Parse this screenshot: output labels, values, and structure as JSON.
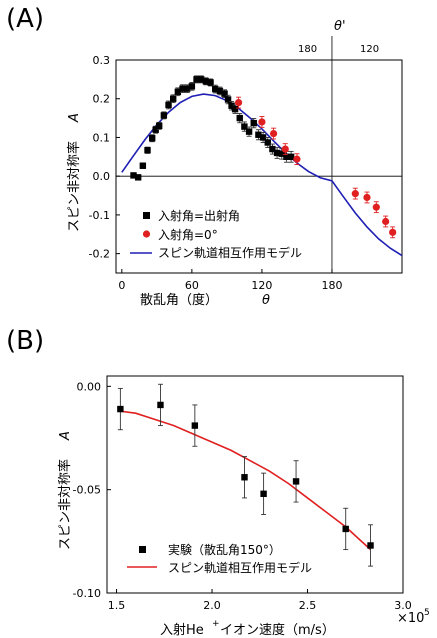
{
  "panels": {
    "a_label": "(A)",
    "b_label": "(B)"
  },
  "chart_data": [
    {
      "type": "scatter",
      "panel": "A",
      "xlabel": "散乱角（度）",
      "xlabel_symbol": "θ",
      "ylabel": "スピン非対称率",
      "ylabel_symbol": "A",
      "top_axis_label": "θ'",
      "top_ticks": [
        "180",
        "120"
      ],
      "xlim": [
        -5,
        240
      ],
      "ylim": [
        -0.25,
        0.3
      ],
      "xticks": [
        0,
        60,
        120,
        180
      ],
      "yticks": [
        -0.2,
        -0.1,
        0.0,
        0.1,
        0.2,
        0.3
      ],
      "xtick_labels": [
        "0",
        "60",
        "120",
        "180"
      ],
      "ytick_labels": [
        "-0.2",
        "-0.1",
        "0.0",
        "0.1",
        "0.2",
        "0.3"
      ],
      "vline_x": 180,
      "legend_position": "bottom-left",
      "series": [
        {
          "name": "入射角=出射角",
          "color": "#000000",
          "marker": "square",
          "points": [
            [
              10,
              0.002,
              0.006
            ],
            [
              14,
              -0.003,
              0.006
            ],
            [
              18,
              0.027,
              0.007
            ],
            [
              22,
              0.067,
              0.008
            ],
            [
              26,
              0.098,
              0.009
            ],
            [
              29,
              0.12,
              0.009
            ],
            [
              32,
              0.13,
              0.009
            ],
            [
              36,
              0.157,
              0.009
            ],
            [
              40,
              0.184,
              0.01
            ],
            [
              44,
              0.2,
              0.01
            ],
            [
              48,
              0.218,
              0.01
            ],
            [
              52,
              0.226,
              0.01
            ],
            [
              56,
              0.226,
              0.01
            ],
            [
              60,
              0.232,
              0.01
            ],
            [
              64,
              0.25,
              0.009
            ],
            [
              68,
              0.25,
              0.009
            ],
            [
              72,
              0.245,
              0.009
            ],
            [
              76,
              0.242,
              0.009
            ],
            [
              80,
              0.225,
              0.01
            ],
            [
              84,
              0.22,
              0.01
            ],
            [
              88,
              0.213,
              0.01
            ],
            [
              91,
              0.198,
              0.011
            ],
            [
              94,
              0.182,
              0.011
            ],
            [
              97,
              0.173,
              0.011
            ],
            [
              101,
              0.15,
              0.012
            ],
            [
              105,
              0.128,
              0.012
            ],
            [
              109,
              0.115,
              0.012
            ],
            [
              113,
              0.137,
              0.012
            ],
            [
              117,
              0.107,
              0.013
            ],
            [
              121,
              0.1,
              0.013
            ],
            [
              125,
              0.087,
              0.013
            ],
            [
              129,
              0.07,
              0.013
            ],
            [
              133,
              0.06,
              0.014
            ],
            [
              137,
              0.058,
              0.014
            ],
            [
              141,
              0.05,
              0.014
            ],
            [
              145,
              0.05,
              0.014
            ]
          ]
        },
        {
          "name": "入射角=0°",
          "color": "#e02020",
          "marker": "circle",
          "points": [
            [
              100,
              0.19,
              0.014
            ],
            [
              120,
              0.14,
              0.014
            ],
            [
              130,
              0.11,
              0.014
            ],
            [
              140,
              0.07,
              0.014
            ],
            [
              150,
              0.044,
              0.014
            ],
            [
              200,
              -0.045,
              0.014
            ],
            [
              210,
              -0.055,
              0.014
            ],
            [
              218,
              -0.08,
              0.014
            ],
            [
              226,
              -0.117,
              0.014
            ],
            [
              232,
              -0.145,
              0.014
            ]
          ]
        },
        {
          "name": "スピン軌道相互作用モデル",
          "color": "#1f1fb4",
          "marker": "line",
          "curve_x": [
            0,
            10,
            20,
            30,
            40,
            50,
            60,
            70,
            80,
            90,
            100,
            110,
            120,
            130,
            140,
            150,
            160,
            170,
            180,
            190,
            200,
            210,
            220,
            230,
            240
          ],
          "curve_y": [
            0.01,
            0.053,
            0.095,
            0.133,
            0.165,
            0.19,
            0.206,
            0.212,
            0.208,
            0.195,
            0.175,
            0.15,
            0.122,
            0.091,
            0.061,
            0.034,
            0.012,
            -0.004,
            -0.012,
            -0.054,
            -0.095,
            -0.131,
            -0.162,
            -0.186,
            -0.205
          ]
        }
      ]
    },
    {
      "type": "scatter",
      "panel": "B",
      "xlabel": "入射He",
      "xlabel_sup": "+",
      "xlabel_tail": "イオン速度（m/s）",
      "x_multiplier": "×10",
      "x_multiplier_exp": "5",
      "ylabel": "スピン非対称率",
      "ylabel_symbol": "A",
      "xlim": [
        1.45,
        3.0
      ],
      "ylim": [
        -0.1,
        0.005
      ],
      "xticks": [
        1.5,
        2.0,
        2.5,
        3.0
      ],
      "yticks": [
        -0.1,
        -0.05,
        0.0
      ],
      "xtick_labels": [
        "1.5",
        "2.0",
        "2.5",
        "3.0"
      ],
      "ytick_labels": [
        "-0.10",
        "-0.05",
        "0.00"
      ],
      "legend_position": "bottom-left",
      "series": [
        {
          "name": "実験（散乱角150°）",
          "color": "#000000",
          "marker": "square",
          "points": [
            [
              1.52,
              -0.011,
              0.01
            ],
            [
              1.73,
              -0.009,
              0.01
            ],
            [
              1.91,
              -0.019,
              0.01
            ],
            [
              2.17,
              -0.044,
              0.01
            ],
            [
              2.27,
              -0.052,
              0.01
            ],
            [
              2.44,
              -0.046,
              0.01
            ],
            [
              2.7,
              -0.069,
              0.01
            ],
            [
              2.83,
              -0.077,
              0.01
            ]
          ]
        },
        {
          "name": "スピン軌道相互作用モデル",
          "color": "#e02020",
          "marker": "line",
          "curve_x": [
            1.52,
            1.6,
            1.7,
            1.8,
            1.9,
            2.0,
            2.1,
            2.2,
            2.3,
            2.4,
            2.5,
            2.6,
            2.7,
            2.83
          ],
          "curve_y": [
            -0.012,
            -0.013,
            -0.016,
            -0.019,
            -0.023,
            -0.027,
            -0.031,
            -0.036,
            -0.041,
            -0.047,
            -0.054,
            -0.061,
            -0.068,
            -0.079
          ]
        }
      ]
    }
  ]
}
